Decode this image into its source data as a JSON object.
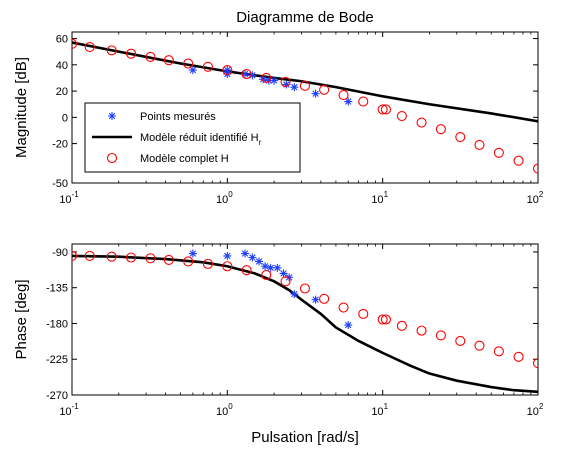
{
  "chart_data": [
    {
      "type": "scatter",
      "title": "Diagramme de Bode",
      "xlabel": "",
      "ylabel": "Magnitude [dB]",
      "xscale": "log",
      "xlim": [
        0.1,
        100
      ],
      "ylim": [
        -50,
        65
      ],
      "yticks": [
        60,
        40,
        20,
        0,
        -20,
        -50
      ],
      "xticks": [
        {
          "value": 0.1,
          "base": "10",
          "exp": "-1"
        },
        {
          "value": 1,
          "base": "10",
          "exp": "0"
        },
        {
          "value": 10,
          "base": "10",
          "exp": "1"
        },
        {
          "value": 100,
          "base": "10",
          "exp": "2"
        }
      ],
      "grid": false,
      "legend_position": "lower-left",
      "legend": [
        {
          "label": "Points mesurés",
          "subscript": "",
          "series": "measured"
        },
        {
          "label": "Modèle réduit identifié H",
          "subscript": "r",
          "series": "reduced"
        },
        {
          "label": "Modèle complet H",
          "subscript": "",
          "series": "full"
        }
      ],
      "series": [
        {
          "key": "measured",
          "marker": "star",
          "color": "#1f3fff",
          "x": [
            0.6,
            1.0,
            1.0,
            1.3,
            1.45,
            1.7,
            1.85,
            2.0,
            2.4,
            2.7,
            3.7,
            6.0
          ],
          "y": [
            36,
            33,
            36,
            33,
            32,
            29,
            28,
            28,
            25,
            23,
            18,
            12
          ]
        },
        {
          "key": "reduced",
          "marker": "line",
          "color": "#000000",
          "x": [
            0.1,
            0.3,
            0.5,
            1,
            2,
            3,
            5,
            10,
            20,
            50,
            100
          ],
          "y": [
            57,
            46,
            41,
            35,
            30,
            27.5,
            23,
            16,
            10,
            3,
            -3
          ]
        },
        {
          "key": "full",
          "marker": "circle",
          "color": "#ff0000",
          "x": [
            0.1,
            0.13,
            0.18,
            0.24,
            0.32,
            0.42,
            0.56,
            0.75,
            1.0,
            1.33,
            1.78,
            2.37,
            3.16,
            4.2,
            5.6,
            7.5,
            10.0,
            10.5,
            13.3,
            17.8,
            23.7,
            31.6,
            42,
            56,
            75,
            100
          ],
          "y": [
            56,
            53.5,
            51,
            48.5,
            46,
            43.5,
            41,
            38.5,
            36,
            33,
            30,
            27,
            24,
            21,
            17,
            12,
            6,
            6,
            1,
            -4,
            -9,
            -15,
            -21,
            -27,
            -33,
            -39
          ]
        }
      ]
    },
    {
      "type": "scatter",
      "title": "",
      "xlabel": "Pulsation [rad/s]",
      "ylabel": "Phase [deg]",
      "xscale": "log",
      "xlim": [
        0.1,
        100
      ],
      "ylim": [
        -270,
        -80
      ],
      "yticks": [
        -90,
        -135,
        -180,
        -225,
        -270
      ],
      "xticks": [
        {
          "value": 0.1,
          "base": "10",
          "exp": "-1"
        },
        {
          "value": 1,
          "base": "10",
          "exp": "0"
        },
        {
          "value": 10,
          "base": "10",
          "exp": "1"
        },
        {
          "value": 100,
          "base": "10",
          "exp": "2"
        }
      ],
      "grid": false,
      "series": [
        {
          "key": "measured",
          "marker": "star",
          "color": "#1f3fff",
          "x": [
            0.6,
            1.0,
            1.3,
            1.45,
            1.6,
            1.75,
            1.9,
            2.1,
            2.3,
            2.5,
            2.7,
            3.7,
            6.0
          ],
          "y": [
            -92,
            -95,
            -92,
            -97,
            -102,
            -108,
            -110,
            -110,
            -117,
            -122,
            -143,
            -150,
            -182
          ]
        },
        {
          "key": "reduced",
          "marker": "line",
          "color": "#000000",
          "x": [
            0.1,
            0.2,
            0.4,
            0.7,
            1.0,
            1.5,
            2.0,
            2.5,
            3.0,
            4.0,
            5.0,
            7.0,
            10.0,
            15,
            20,
            30,
            50,
            70,
            100
          ],
          "y": [
            -95,
            -96,
            -99,
            -103,
            -108,
            -117,
            -127,
            -138,
            -150,
            -168,
            -185,
            -202,
            -217,
            -233,
            -243,
            -252,
            -260,
            -264,
            -266
          ]
        },
        {
          "key": "full",
          "marker": "circle",
          "color": "#ff0000",
          "x": [
            0.1,
            0.13,
            0.18,
            0.24,
            0.32,
            0.42,
            0.56,
            0.75,
            1.0,
            1.33,
            1.78,
            2.37,
            3.16,
            4.2,
            5.6,
            7.5,
            10.0,
            10.5,
            13.3,
            17.8,
            23.7,
            31.6,
            42,
            56,
            75,
            100
          ],
          "y": [
            -95,
            -95,
            -96,
            -97,
            -98,
            -100,
            -102,
            -105,
            -108,
            -113,
            -119,
            -127,
            -136,
            -149,
            -160,
            -168,
            -175,
            -175,
            -183,
            -189,
            -195,
            -202,
            -208,
            -215,
            -222,
            -230
          ]
        }
      ]
    }
  ]
}
